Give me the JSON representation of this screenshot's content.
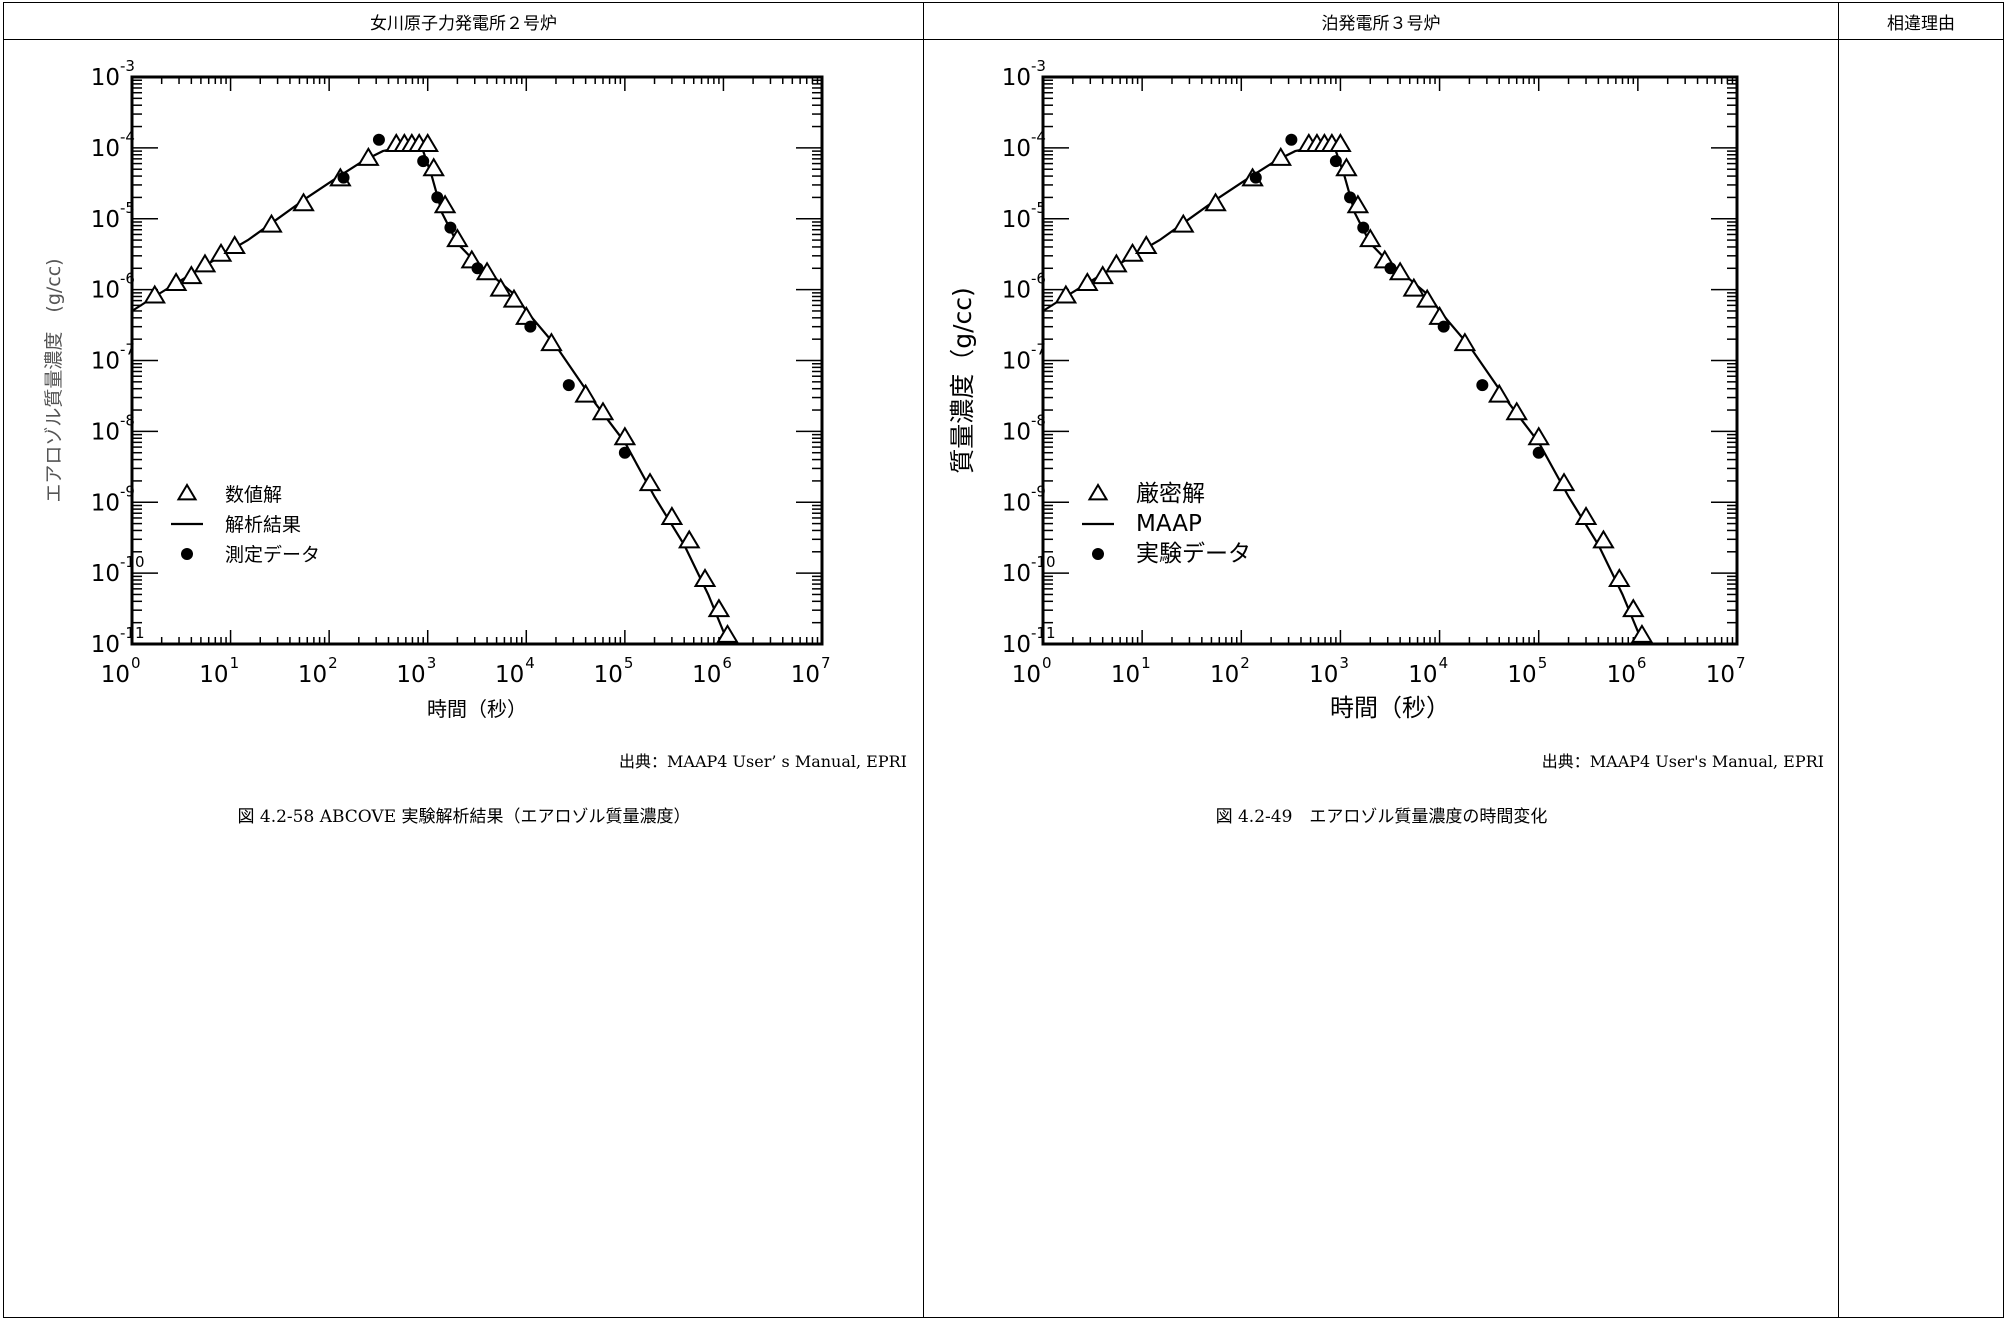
{
  "headers": {
    "left": "女川原子力発電所２号炉",
    "right": "泊発電所３号炉",
    "reason": "相違理由"
  },
  "left": {
    "source": "出典：MAAP4 User’ s Manual, EPRI",
    "caption": "図 4.2-58 ABCOVE 実験解析結果（エアロゾル質量濃度）"
  },
  "right": {
    "source": "出典：MAAP4 User's Manual, EPRI",
    "caption": "図 4.2-49　エアロゾル質量濃度の時間変化"
  },
  "chart_data": [
    {
      "type": "scatter",
      "title": "",
      "xlabel": "時間（秒）",
      "ylabel": "エアロゾル質量濃度　(g/cc)",
      "xscale": "log",
      "yscale": "log",
      "xlim": [
        1,
        10000000
      ],
      "ylim": [
        1e-11,
        0.001
      ],
      "x_ticks": [
        "0",
        "1",
        "2",
        "3",
        "4",
        "5",
        "6",
        "7"
      ],
      "y_ticks": [
        "-3",
        "-4",
        "-5",
        "-6",
        "-7",
        "-8",
        "-9",
        "-10",
        "-11"
      ],
      "legend_position": "lower-left",
      "series": [
        {
          "name": "数値解",
          "marker": "triangle",
          "x": [
            1.7,
            2.8,
            4,
            5.5,
            8,
            11,
            26,
            55,
            130,
            250,
            480,
            580,
            690,
            820,
            1000,
            1150,
            1500,
            2000,
            2800,
            4000,
            5500,
            7500,
            10000,
            18000,
            40000,
            60000,
            100000,
            180000,
            300000,
            450000,
            650000,
            900000,
            1100000
          ],
          "y": [
            8e-07,
            1.2e-06,
            1.5e-06,
            2.2e-06,
            3.1e-06,
            4e-06,
            8e-06,
            1.6e-05,
            3.6e-05,
            7e-05,
            0.00011,
            0.00011,
            0.00011,
            0.00011,
            0.00011,
            5e-05,
            1.5e-05,
            5e-06,
            2.5e-06,
            1.7e-06,
            1e-06,
            7e-07,
            4e-07,
            1.7e-07,
            3.2e-08,
            1.8e-08,
            8e-09,
            1.8e-09,
            6e-10,
            2.8e-10,
            8e-11,
            3e-11,
            1.3e-11
          ]
        },
        {
          "name": "解析結果",
          "marker": "line",
          "x": [
            1,
            1.7,
            3,
            5,
            8,
            15,
            30,
            60,
            120,
            220,
            350,
            500,
            650,
            800,
            900,
            1100,
            1400,
            2000,
            3000,
            5000,
            8000,
            10000,
            20000,
            50000,
            100000,
            200000,
            400000,
            700000,
            1000000,
            1200000
          ],
          "y": [
            5e-07,
            8e-07,
            1.3e-06,
            2e-06,
            3e-06,
            5e-06,
            1e-05,
            2e-05,
            3.8e-05,
            6.5e-05,
            9e-05,
            0.0001,
            0.000105,
            0.000105,
            9e-05,
            4e-05,
            1.2e-05,
            4.5e-06,
            2.5e-06,
            1.4e-06,
            8e-07,
            5e-07,
            1.6e-07,
            2.5e-08,
            7e-09,
            1.2e-09,
            2.5e-10,
            5e-11,
            1.5e-11,
            1e-11
          ]
        },
        {
          "name": "測定データ",
          "marker": "dot",
          "x": [
            140,
            320,
            900,
            1250,
            1700,
            3200,
            11000,
            27000,
            100000
          ],
          "y": [
            3.8e-05,
            0.00013,
            6.5e-05,
            2e-05,
            7.5e-06,
            2e-06,
            3e-07,
            4.5e-08,
            5e-09
          ]
        }
      ]
    },
    {
      "type": "scatter",
      "title": "",
      "xlabel": "時間（秒）",
      "ylabel": "質量濃度（g/cc)",
      "xscale": "log",
      "yscale": "log",
      "xlim": [
        1,
        10000000
      ],
      "ylim": [
        1e-11,
        0.001
      ],
      "x_ticks": [
        "0",
        "1",
        "2",
        "3",
        "4",
        "5",
        "6",
        "7"
      ],
      "y_ticks": [
        "-3",
        "-4",
        "-5",
        "-6",
        "-7",
        "-8",
        "-9",
        "-10",
        "-11"
      ],
      "legend_position": "lower-left",
      "series": [
        {
          "name": "厳密解",
          "marker": "triangle",
          "x": [
            1.7,
            2.8,
            4,
            5.5,
            8,
            11,
            26,
            55,
            130,
            250,
            480,
            580,
            690,
            820,
            1000,
            1150,
            1500,
            2000,
            2800,
            4000,
            5500,
            7500,
            10000,
            18000,
            40000,
            60000,
            100000,
            180000,
            300000,
            450000,
            650000,
            900000,
            1100000
          ],
          "y": [
            8e-07,
            1.2e-06,
            1.5e-06,
            2.2e-06,
            3.1e-06,
            4e-06,
            8e-06,
            1.6e-05,
            3.6e-05,
            7e-05,
            0.00011,
            0.00011,
            0.00011,
            0.00011,
            0.00011,
            5e-05,
            1.5e-05,
            5e-06,
            2.5e-06,
            1.7e-06,
            1e-06,
            7e-07,
            4e-07,
            1.7e-07,
            3.2e-08,
            1.8e-08,
            8e-09,
            1.8e-09,
            6e-10,
            2.8e-10,
            8e-11,
            3e-11,
            1.3e-11
          ]
        },
        {
          "name": "MAAP",
          "marker": "line",
          "x": [
            1,
            1.7,
            3,
            5,
            8,
            15,
            30,
            60,
            120,
            220,
            350,
            500,
            650,
            800,
            900,
            1100,
            1400,
            2000,
            3000,
            5000,
            8000,
            10000,
            20000,
            50000,
            100000,
            200000,
            400000,
            700000,
            1000000,
            1200000
          ],
          "y": [
            5e-07,
            8e-07,
            1.3e-06,
            2e-06,
            3e-06,
            5e-06,
            1e-05,
            2e-05,
            3.8e-05,
            6.5e-05,
            9e-05,
            0.0001,
            0.000105,
            0.000105,
            9e-05,
            4e-05,
            1.2e-05,
            4.5e-06,
            2.5e-06,
            1.4e-06,
            8e-07,
            5e-07,
            1.6e-07,
            2.5e-08,
            7e-09,
            1.2e-09,
            2.5e-10,
            5e-11,
            1.5e-11,
            1e-11
          ]
        },
        {
          "name": "実験データ",
          "marker": "dot",
          "x": [
            140,
            320,
            900,
            1250,
            1700,
            3200,
            11000,
            27000,
            100000
          ],
          "y": [
            3.8e-05,
            0.00013,
            6.5e-05,
            2e-05,
            7.5e-06,
            2e-06,
            3e-07,
            4.5e-08,
            5e-09
          ]
        }
      ]
    }
  ]
}
